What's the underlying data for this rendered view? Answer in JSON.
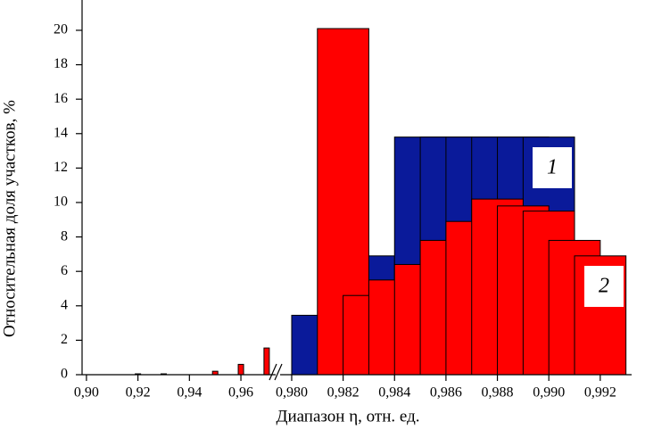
{
  "chart_data": {
    "type": "bar",
    "x_label": "Диапазон η, отн. ед.",
    "y_label": "Относительная доля участков, %",
    "xlim": [
      [
        0.8983,
        0.9735
      ],
      [
        0.97955,
        0.99322
      ]
    ],
    "xticks": [
      {
        "value": 0.9,
        "label": "0,90"
      },
      {
        "value": 0.92,
        "label": "0,92"
      },
      {
        "value": 0.94,
        "label": "0,94"
      },
      {
        "value": 0.96,
        "label": "0,96"
      },
      {
        "value": 0.98,
        "label": "0,980"
      },
      {
        "value": 0.982,
        "label": "0,982"
      },
      {
        "value": 0.984,
        "label": "0,984"
      },
      {
        "value": 0.986,
        "label": "0,986"
      },
      {
        "value": 0.988,
        "label": "0,988"
      },
      {
        "value": 0.99,
        "label": "0,990"
      },
      {
        "value": 0.992,
        "label": "0,992"
      }
    ],
    "ylim": [
      0,
      21.76
    ],
    "yticks": [
      0,
      2,
      4,
      6,
      8,
      10,
      12,
      14,
      16,
      18,
      20
    ],
    "series": [
      {
        "name": "1",
        "color": "#0a1a9a",
        "x": [
          0.981,
          0.983,
          0.985,
          0.986,
          0.987,
          0.988,
          0.989,
          0.99
        ],
        "values": [
          3.45,
          6.9,
          13.8,
          13.8,
          13.8,
          13.8,
          13.8,
          13.8
        ]
      },
      {
        "name": "2",
        "color": "#ff0000",
        "x": [
          0.92,
          0.93,
          0.95,
          0.96,
          0.97,
          0.982,
          0.983,
          0.984,
          0.985,
          0.986,
          0.987,
          0.988,
          0.989,
          0.99,
          0.991,
          0.992
        ],
        "values": [
          0.05,
          0.05,
          0.2,
          0.6,
          1.55,
          20.1,
          4.6,
          5.5,
          6.4,
          7.8,
          8.9,
          10.2,
          9.8,
          9.5,
          7.8,
          6.9
        ]
      }
    ]
  }
}
